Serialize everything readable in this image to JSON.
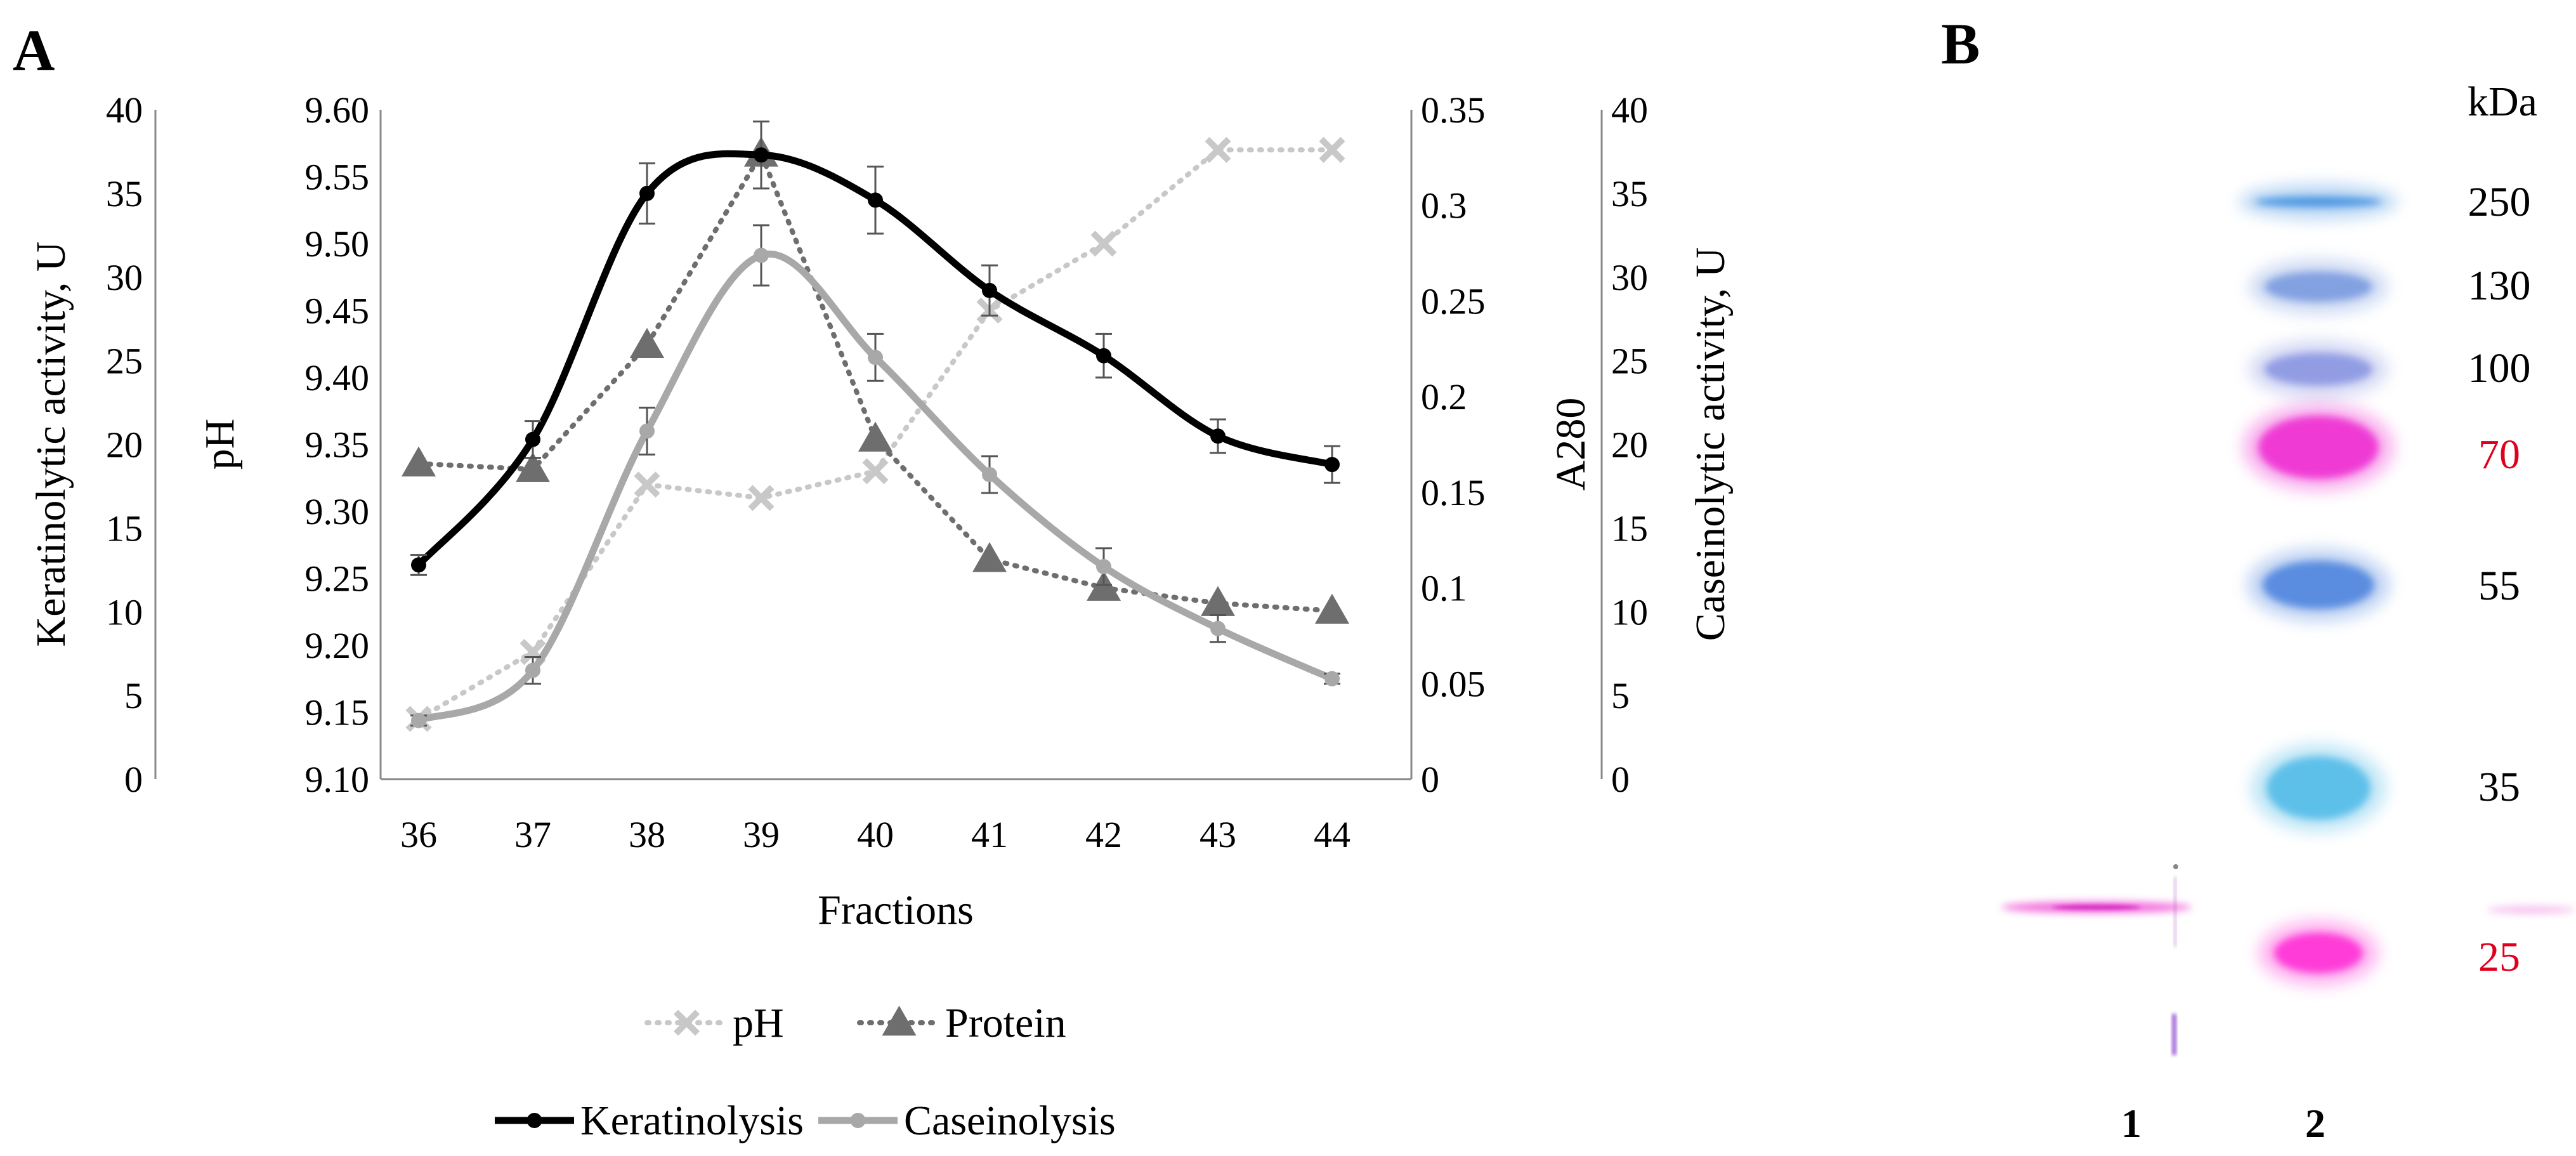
{
  "panels": {
    "a": "A",
    "b": "B"
  },
  "chart_data": {
    "type": "line",
    "xlabel": "Fractions",
    "categories": [
      36,
      37,
      38,
      39,
      40,
      41,
      42,
      43,
      44
    ],
    "axes": {
      "keratinolytic": {
        "label": "Keratinolytic activity, U",
        "ylim": [
          0,
          40
        ],
        "ticks": [
          0,
          5,
          10,
          15,
          20,
          25,
          30,
          35,
          40
        ]
      },
      "ph": {
        "label": "pH",
        "ylim": [
          9.1,
          9.6
        ],
        "ticks": [
          "9.10",
          "9.15",
          "9.20",
          "9.25",
          "9.30",
          "9.35",
          "9.40",
          "9.45",
          "9.50",
          "9.55",
          "9.60"
        ]
      },
      "a280": {
        "label": "A280",
        "ylim": [
          0,
          0.35
        ],
        "ticks": [
          "0",
          "0.05",
          "0.1",
          "0.15",
          "0.2",
          "0.25",
          "0.3",
          "0.35"
        ]
      },
      "caseinolytic": {
        "label": "Caseinolytic activity, U",
        "ylim": [
          0,
          40
        ],
        "ticks": [
          0,
          5,
          10,
          15,
          20,
          25,
          30,
          35,
          40
        ]
      }
    },
    "grid": false,
    "legend_position": "bottom",
    "series": [
      {
        "name": "pH",
        "axis": "ph",
        "values": [
          9.145,
          9.195,
          9.32,
          9.31,
          9.33,
          9.45,
          9.5,
          9.57,
          9.57
        ],
        "color": "#c8c8c8",
        "style": "dotted",
        "marker": "x"
      },
      {
        "name": "Protein",
        "axis": "a280",
        "values": [
          0.165,
          0.162,
          0.227,
          0.327,
          0.178,
          0.115,
          0.1,
          0.092,
          0.088
        ],
        "color": "#6e6e6e",
        "style": "dotted",
        "marker": "triangle"
      },
      {
        "name": "Keratinolysis",
        "axis": "keratinolytic",
        "values": [
          12.8,
          20.3,
          35.0,
          37.3,
          34.6,
          29.2,
          25.3,
          20.5,
          18.8
        ],
        "errors": [
          0.6,
          1.1,
          1.8,
          2.0,
          2.0,
          1.5,
          1.3,
          1.0,
          1.1
        ],
        "color": "#000000",
        "style": "solid",
        "marker": "circle"
      },
      {
        "name": "Caseinolysis",
        "axis": "caseinolytic",
        "values": [
          3.5,
          6.5,
          20.8,
          31.3,
          25.2,
          18.2,
          12.7,
          9.0,
          6.0
        ],
        "errors": [
          0.3,
          0.8,
          1.4,
          1.8,
          1.4,
          1.1,
          1.1,
          0.8,
          0.3
        ],
        "color": "#a8a8a8",
        "style": "solid",
        "marker": "circle"
      }
    ]
  },
  "gel": {
    "unit_label": "kDa",
    "markers": [
      {
        "label": "250",
        "color": "#000000"
      },
      {
        "label": "130",
        "color": "#000000"
      },
      {
        "label": "100",
        "color": "#000000"
      },
      {
        "label": "70",
        "color": "#e0001c"
      },
      {
        "label": "55",
        "color": "#000000"
      },
      {
        "label": "35",
        "color": "#000000"
      },
      {
        "label": "25",
        "color": "#e0001c"
      }
    ],
    "lanes": [
      "1",
      "2"
    ],
    "band_colors": [
      "#3e8ee0",
      "#7a9be0",
      "#8a96e2",
      "#ee2fd2",
      "#4f85de",
      "#52bce8",
      "#ff2fd6"
    ]
  }
}
